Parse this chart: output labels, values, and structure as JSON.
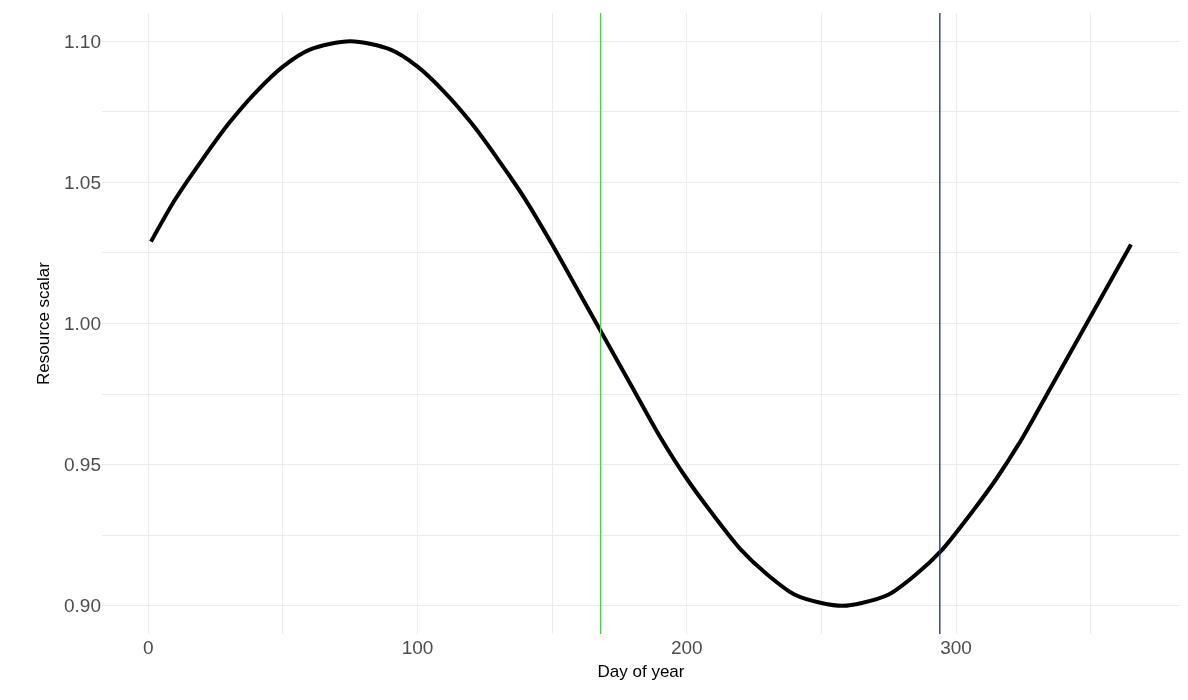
{
  "chart_data": {
    "type": "line",
    "xlabel": "Day of year",
    "ylabel": "Resource scalar",
    "x": [
      1,
      10,
      20,
      30,
      40,
      50,
      60,
      75,
      90,
      100,
      110,
      120,
      130,
      140,
      150,
      160,
      170,
      180,
      190,
      200,
      210,
      220,
      230,
      240,
      250,
      258,
      265,
      275,
      285,
      295,
      305,
      315,
      325,
      335,
      345,
      355,
      365
    ],
    "series": [
      {
        "color": "#000000",
        "values": [
          1.029,
          1.044,
          1.058,
          1.071,
          1.082,
          1.091,
          1.097,
          1.1,
          1.097,
          1.091,
          1.082,
          1.071,
          1.058,
          1.044,
          1.028,
          1.011,
          0.994,
          0.977,
          0.96,
          0.945,
          0.932,
          0.92,
          0.911,
          0.904,
          0.901,
          0.9,
          0.901,
          0.904,
          0.911,
          0.92,
          0.932,
          0.945,
          0.96,
          0.977,
          0.994,
          1.011,
          1.028
        ]
      }
    ],
    "xlim": [
      -17.2,
      383.2
    ],
    "ylim": [
      0.89,
      1.11
    ],
    "xticks": [
      0,
      {
        "value": 50,
        "label": null
      },
      100,
      {
        "value": 150,
        "label": null
      },
      200,
      {
        "value": 250,
        "label": null
      },
      300,
      {
        "value": 350,
        "label": null
      }
    ],
    "yticks": [
      {
        "value": 0.9,
        "label": "0.90"
      },
      {
        "value": 0.925,
        "label": null
      },
      {
        "value": 0.95,
        "label": "0.95"
      },
      {
        "value": 0.975,
        "label": null
      },
      {
        "value": 1.0,
        "label": "1.00"
      },
      {
        "value": 1.025,
        "label": null
      },
      {
        "value": 1.05,
        "label": "1.05"
      },
      {
        "value": 1.075,
        "label": null
      },
      {
        "value": 1.1,
        "label": "1.10"
      }
    ],
    "ref_lines": [
      {
        "axis": "x",
        "value": 168,
        "color": "#4fcf4f"
      },
      {
        "axis": "x",
        "value": 294,
        "color": "#1f2a80"
      }
    ],
    "grid": true,
    "marker": "none",
    "line_style": "solid"
  }
}
